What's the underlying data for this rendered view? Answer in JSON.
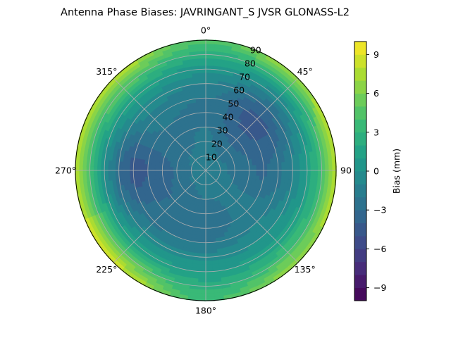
{
  "chart_data": {
    "type": "heatmap",
    "projection": "polar",
    "title": "Antenna Phase Biases: JAVRINGANT_S    JVSR GLONASS-L2",
    "angle_ticks": [
      0,
      45,
      90,
      135,
      180,
      225,
      270,
      315
    ],
    "angle_tick_labels": [
      "0°",
      "45°",
      "90",
      "135°",
      "180°",
      "225°",
      "270°",
      "315°"
    ],
    "radial_ticks": [
      10,
      20,
      30,
      40,
      50,
      60,
      70,
      80,
      90
    ],
    "radial_tick_labels": [
      "10",
      "20",
      "30",
      "40",
      "50",
      "60",
      "70",
      "80",
      "90"
    ],
    "r_range": [
      0,
      90
    ],
    "angle_zero": "top",
    "angle_direction": "clockwise",
    "grid": true,
    "colormap": "viridis",
    "colorbar": {
      "label": "Bias (mm)",
      "range": [
        -10,
        10
      ],
      "ticks": [
        -9,
        -6,
        -3,
        0,
        3,
        6,
        9
      ],
      "tick_labels": [
        "−9",
        "−6",
        "−3",
        "0",
        "3",
        "6",
        "9"
      ],
      "levels": 20
    },
    "field_samples": {
      "r": [
        0,
        10,
        20,
        30,
        40,
        50,
        60,
        70,
        80,
        90
      ],
      "note_values_mm_by_azimuth": "values in mm",
      "profiles": [
        {
          "az": 0,
          "values": [
            -1.5,
            -1.5,
            -1.8,
            -2.0,
            -2.3,
            -2.0,
            -1.0,
            0.5,
            2.5,
            4.5
          ]
        },
        {
          "az": 45,
          "values": [
            -1.5,
            -1.8,
            -2.5,
            -3.5,
            -4.2,
            -4.5,
            -3.0,
            -0.5,
            3.0,
            7.5
          ]
        },
        {
          "az": 90,
          "values": [
            -1.5,
            -1.8,
            -2.2,
            -2.8,
            -3.2,
            -2.5,
            -1.0,
            1.0,
            4.0,
            8.0
          ]
        },
        {
          "az": 135,
          "values": [
            -1.5,
            -1.6,
            -1.8,
            -1.8,
            -1.5,
            -1.0,
            0.0,
            1.5,
            4.0,
            7.0
          ]
        },
        {
          "az": 180,
          "values": [
            -1.5,
            -1.6,
            -2.0,
            -2.5,
            -2.8,
            -2.0,
            -0.5,
            1.0,
            2.5,
            4.0
          ]
        },
        {
          "az": 225,
          "values": [
            -1.5,
            -1.8,
            -2.5,
            -3.0,
            -2.8,
            -2.2,
            -0.8,
            1.5,
            5.0,
            8.5
          ]
        },
        {
          "az": 270,
          "values": [
            -1.5,
            -2.0,
            -2.8,
            -3.5,
            -4.0,
            -4.5,
            -3.0,
            0.0,
            4.0,
            8.5
          ]
        },
        {
          "az": 315,
          "values": [
            -1.5,
            -1.8,
            -2.2,
            -2.2,
            -2.0,
            -1.5,
            -0.5,
            1.5,
            4.5,
            8.0
          ]
        }
      ]
    }
  }
}
